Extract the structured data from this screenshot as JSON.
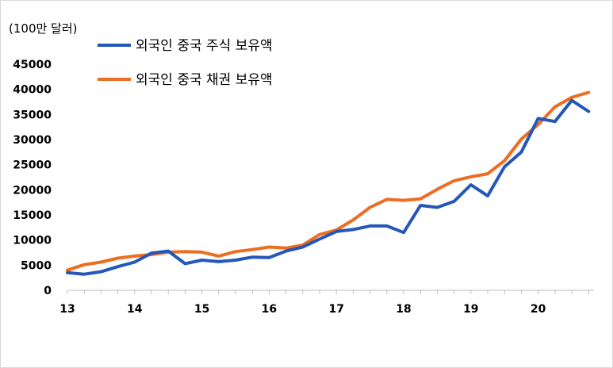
{
  "chart_data": {
    "type": "line",
    "unit_label": "(100만 달러)",
    "ylim": [
      0,
      45000
    ],
    "y_ticks": [
      0,
      5000,
      10000,
      15000,
      20000,
      25000,
      30000,
      35000,
      40000,
      45000
    ],
    "y_tick_labels": [
      "0",
      "5000",
      "10000",
      "15000",
      "20000",
      "25000",
      "30000",
      "35000",
      "40000",
      "45000"
    ],
    "xlim": [
      2013,
      2020.83
    ],
    "x_ticks": [
      2013,
      2014,
      2015,
      2016,
      2017,
      2018,
      2019,
      2020
    ],
    "x_tick_labels": [
      "13",
      "14",
      "15",
      "16",
      "17",
      "18",
      "19",
      "20"
    ],
    "grid": false,
    "legend_position": "top-left",
    "series": [
      {
        "name": "외국인 중국 주식 보유액",
        "color": "#2457b8",
        "x": [
          2013.0,
          2013.25,
          2013.5,
          2013.75,
          2014.0,
          2014.25,
          2014.5,
          2014.75,
          2015.0,
          2015.25,
          2015.5,
          2015.75,
          2016.0,
          2016.25,
          2016.5,
          2016.75,
          2017.0,
          2017.25,
          2017.5,
          2017.75,
          2018.0,
          2018.25,
          2018.5,
          2018.75,
          2019.0,
          2019.25,
          2019.5,
          2019.75,
          2020.0,
          2020.25,
          2020.5,
          2020.75
        ],
        "values": [
          3500,
          3200,
          3700,
          4700,
          5600,
          7400,
          7800,
          5300,
          6000,
          5700,
          6000,
          6600,
          6500,
          7800,
          8600,
          10200,
          11700,
          12100,
          12800,
          12800,
          11500,
          16900,
          16500,
          17700,
          21000,
          18800,
          24600,
          27500,
          34200,
          33600,
          37800,
          35600
        ]
      },
      {
        "name": "외국인 중국 채권 보유액",
        "color": "#ed6d22",
        "x": [
          2013.0,
          2013.25,
          2013.5,
          2013.75,
          2014.0,
          2014.25,
          2014.5,
          2014.75,
          2015.0,
          2015.25,
          2015.5,
          2015.75,
          2016.0,
          2016.25,
          2016.5,
          2016.75,
          2017.0,
          2017.25,
          2017.5,
          2017.75,
          2018.0,
          2018.25,
          2018.5,
          2018.75,
          2019.0,
          2019.25,
          2019.5,
          2019.75,
          2020.0,
          2020.25,
          2020.5,
          2020.75
        ],
        "values": [
          4000,
          5100,
          5600,
          6400,
          6800,
          7100,
          7600,
          7700,
          7600,
          6800,
          7700,
          8100,
          8600,
          8400,
          9000,
          11100,
          12000,
          14000,
          16500,
          18100,
          17900,
          18200,
          20100,
          21800,
          22600,
          23200,
          25800,
          30100,
          33000,
          36500,
          38400,
          39400
        ]
      }
    ]
  }
}
